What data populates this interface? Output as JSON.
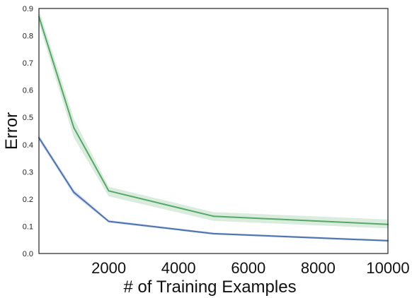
{
  "chart_data": {
    "type": "line",
    "title": "",
    "xlabel": "# of Training Examples",
    "ylabel": "Error",
    "xlim": [
      0,
      10000
    ],
    "ylim": [
      0,
      0.9
    ],
    "xticks": [
      2000,
      4000,
      6000,
      8000,
      10000
    ],
    "xtick_labels": [
      "2000",
      "4000",
      "6000",
      "8000",
      "10000"
    ],
    "yticks": [
      0.0,
      0.1,
      0.2,
      0.3,
      0.4,
      0.5,
      0.6,
      0.7,
      0.8,
      0.9
    ],
    "ytick_labels": [
      "0.0",
      "0.1",
      "0.2",
      "0.3",
      "0.4",
      "0.5",
      "0.6",
      "0.7",
      "0.8",
      "0.9"
    ],
    "grid": false,
    "legend": "none",
    "series": [
      {
        "color": "#4c72b0",
        "x": [
          0,
          1000,
          2000,
          5000,
          10000
        ],
        "y": [
          0.425,
          0.225,
          0.118,
          0.073,
          0.047
        ],
        "lower": [
          0.415,
          0.215,
          0.113,
          0.069,
          0.043
        ],
        "upper": [
          0.435,
          0.235,
          0.123,
          0.077,
          0.051
        ]
      },
      {
        "color": "#55a868",
        "x": [
          0,
          1000,
          2000,
          5000,
          10000
        ],
        "y": [
          0.87,
          0.462,
          0.23,
          0.137,
          0.107
        ],
        "lower": [
          0.845,
          0.425,
          0.21,
          0.12,
          0.092
        ],
        "upper": [
          0.895,
          0.495,
          0.245,
          0.152,
          0.125
        ]
      }
    ]
  }
}
